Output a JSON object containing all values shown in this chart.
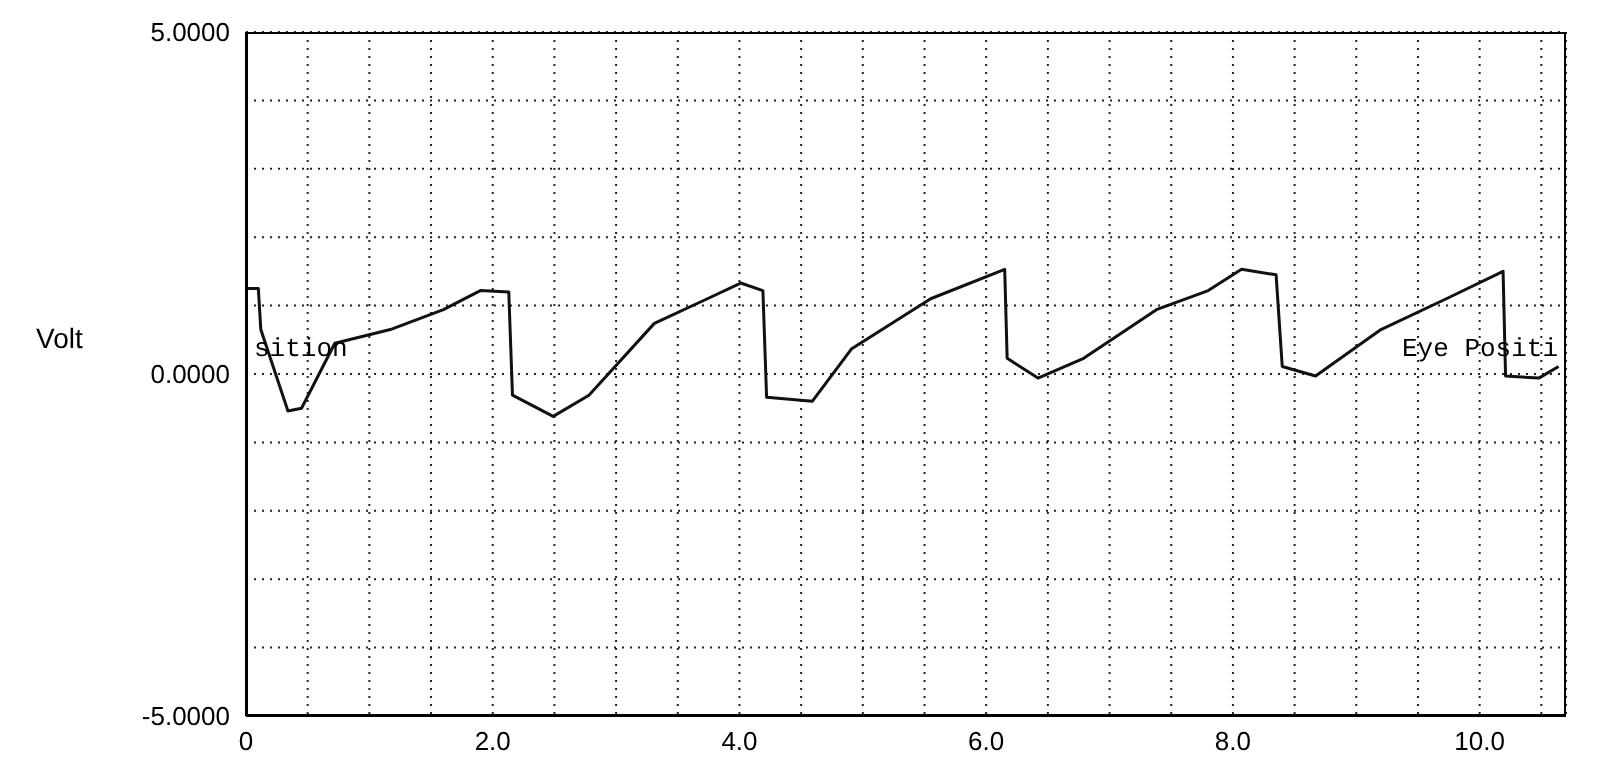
{
  "chart_data": {
    "type": "line",
    "ylabel": "Volt",
    "annotations": [
      "sition",
      "Eye Positi"
    ],
    "x": [
      0,
      0.1,
      0.12,
      0.34,
      0.45,
      0.72,
      1.17,
      1.6,
      1.9,
      2.13,
      2.16,
      2.49,
      2.78,
      3.31,
      3.74,
      4.01,
      4.19,
      4.22,
      4.59,
      4.91,
      5.55,
      6.15,
      6.17,
      6.42,
      6.79,
      7.38,
      7.8,
      8.07,
      8.35,
      8.4,
      8.67,
      9.2,
      9.73,
      10.19,
      10.21,
      10.48,
      10.64
    ],
    "series": [
      {
        "color": "#111111",
        "values": [
          1.25,
          1.25,
          0.65,
          -0.54,
          -0.5,
          0.45,
          0.65,
          0.94,
          1.22,
          1.2,
          -0.31,
          -0.62,
          -0.31,
          0.74,
          1.1,
          1.33,
          1.22,
          -0.34,
          -0.4,
          0.37,
          1.1,
          1.53,
          0.23,
          -0.06,
          0.23,
          0.94,
          1.22,
          1.53,
          1.45,
          0.11,
          -0.03,
          0.65,
          1.1,
          1.5,
          -0.03,
          -0.06,
          0.11
        ]
      }
    ],
    "xlim": [
      0,
      10.7
    ],
    "xticks": [
      {
        "value": 0,
        "label": "0"
      },
      {
        "value": 0.5,
        "label": null
      },
      {
        "value": 1,
        "label": null
      },
      {
        "value": 1.5,
        "label": null
      },
      {
        "value": 2,
        "label": "2.0"
      },
      {
        "value": 2.5,
        "label": null
      },
      {
        "value": 3,
        "label": null
      },
      {
        "value": 3.5,
        "label": null
      },
      {
        "value": 4,
        "label": "4.0"
      },
      {
        "value": 4.5,
        "label": null
      },
      {
        "value": 5,
        "label": null
      },
      {
        "value": 5.5,
        "label": null
      },
      {
        "value": 6,
        "label": "6.0"
      },
      {
        "value": 6.5,
        "label": null
      },
      {
        "value": 7,
        "label": null
      },
      {
        "value": 7.5,
        "label": null
      },
      {
        "value": 8,
        "label": "8.0"
      },
      {
        "value": 8.5,
        "label": null
      },
      {
        "value": 9,
        "label": null
      },
      {
        "value": 9.5,
        "label": null
      },
      {
        "value": 10,
        "label": "10.0"
      },
      {
        "value": 10.5,
        "label": null
      }
    ],
    "ylim": [
      -5,
      5
    ],
    "yticks": [
      {
        "value": -5,
        "label": "-5.0000"
      },
      {
        "value": -4,
        "label": null
      },
      {
        "value": -3,
        "label": null
      },
      {
        "value": -2,
        "label": null
      },
      {
        "value": -1,
        "label": null
      },
      {
        "value": 0,
        "label": "0.0000"
      },
      {
        "value": 1,
        "label": null
      },
      {
        "value": 2,
        "label": null
      },
      {
        "value": 3,
        "label": null
      },
      {
        "value": 4,
        "label": null
      },
      {
        "value": 5,
        "label": "5.0000"
      }
    ],
    "grid": true
  }
}
